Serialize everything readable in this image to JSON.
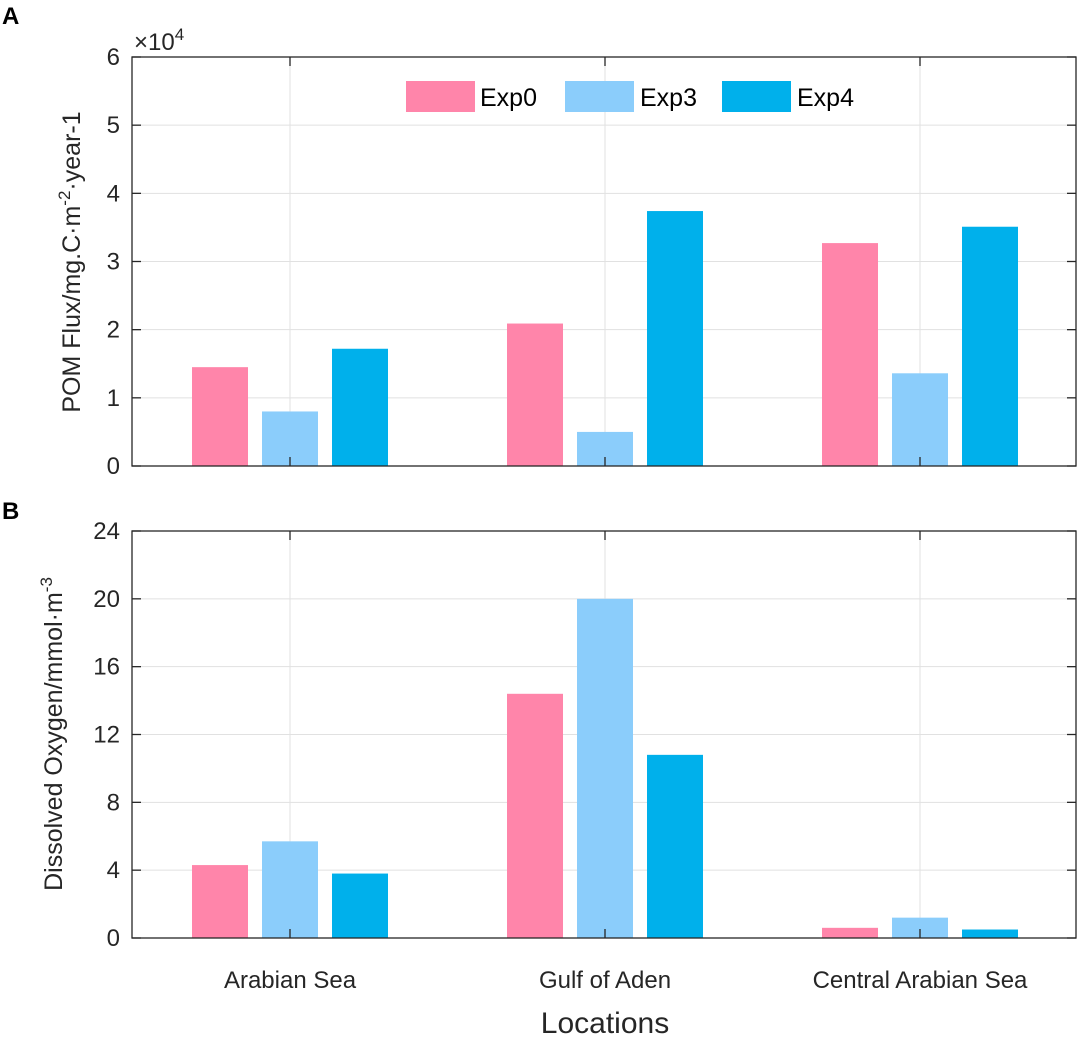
{
  "chart_data": [
    {
      "panel": "A",
      "type": "bar",
      "categories": [
        "Arabian Sea",
        "Gulf of Aden",
        "Central Arabian Sea"
      ],
      "series": [
        {
          "name": "Exp0",
          "values": [
            14500,
            20900,
            32700
          ]
        },
        {
          "name": "Exp3",
          "values": [
            8000,
            5000,
            13600
          ]
        },
        {
          "name": "Exp4",
          "values": [
            17200,
            37400,
            35100
          ]
        }
      ],
      "ylabel": "POM Flux/mg.C·m⁻²·year-1",
      "ylabel_main": "POM Flux/mg.C·m",
      "ylabel_sup": "-2",
      "ylabel_tail": "·year-1",
      "ylim": [
        0,
        60000
      ],
      "yticks": [
        0,
        10000,
        20000,
        30000,
        40000,
        50000,
        60000
      ],
      "ytick_labels": [
        "0",
        "1",
        "2",
        "3",
        "4",
        "5",
        "6"
      ],
      "multiplier_base": "×10",
      "multiplier_exp": "4",
      "grid": true,
      "legend": "top-center"
    },
    {
      "panel": "B",
      "type": "bar",
      "categories": [
        "Arabian Sea",
        "Gulf of Aden",
        "Central Arabian Sea"
      ],
      "series": [
        {
          "name": "Exp0",
          "values": [
            4.3,
            14.4,
            0.6
          ]
        },
        {
          "name": "Exp3",
          "values": [
            5.7,
            20.0,
            1.2
          ]
        },
        {
          "name": "Exp4",
          "values": [
            3.8,
            10.8,
            0.5
          ]
        }
      ],
      "ylabel": "Dissolved Oxygen/mmol·m⁻³",
      "ylabel_main": "Dissolved Oxygen/mmol·m",
      "ylabel_sup": "-3",
      "ylim": [
        0,
        24
      ],
      "yticks": [
        0,
        4,
        8,
        12,
        16,
        20,
        24
      ],
      "ytick_labels": [
        "0",
        "4",
        "8",
        "12",
        "16",
        "20",
        "24"
      ],
      "xlabel": "Locations",
      "grid": true
    }
  ],
  "colors": {
    "Exp0": "#ff85aa",
    "Exp3": "#8bcdfb",
    "Exp4": "#00b0eb",
    "axis": "#262626",
    "grid": "#e1e1e1"
  }
}
